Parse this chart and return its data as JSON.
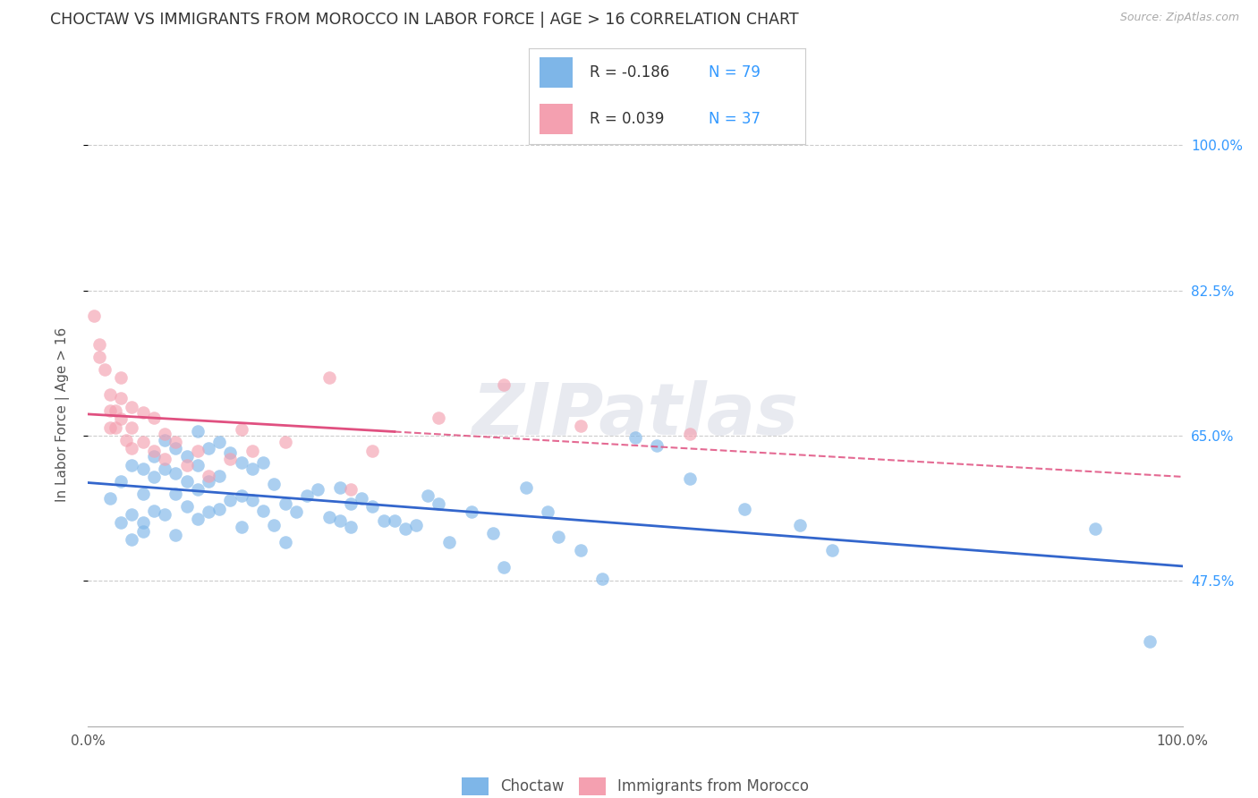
{
  "title": "CHOCTAW VS IMMIGRANTS FROM MOROCCO IN LABOR FORCE | AGE > 16 CORRELATION CHART",
  "source_text": "Source: ZipAtlas.com",
  "ylabel": "In Labor Force | Age > 16",
  "xlim": [
    0.0,
    1.0
  ],
  "ylim": [
    0.3,
    1.05
  ],
  "yticks": [
    0.475,
    0.65,
    0.825,
    1.0
  ],
  "ytick_labels": [
    "47.5%",
    "65.0%",
    "82.5%",
    "100.0%"
  ],
  "background_color": "#ffffff",
  "grid_color": "#cccccc",
  "blue_color": "#7EB6E8",
  "pink_color": "#F4A0B0",
  "blue_line_color": "#3366CC",
  "pink_line_color": "#E05080",
  "title_color": "#333333",
  "axis_label_color": "#555555",
  "blue_R": -0.186,
  "blue_N": 79,
  "pink_R": 0.039,
  "pink_N": 37,
  "blue_x": [
    0.02,
    0.03,
    0.03,
    0.04,
    0.04,
    0.04,
    0.05,
    0.05,
    0.05,
    0.05,
    0.06,
    0.06,
    0.06,
    0.07,
    0.07,
    0.07,
    0.08,
    0.08,
    0.08,
    0.08,
    0.09,
    0.09,
    0.09,
    0.1,
    0.1,
    0.1,
    0.1,
    0.11,
    0.11,
    0.11,
    0.12,
    0.12,
    0.12,
    0.13,
    0.13,
    0.14,
    0.14,
    0.14,
    0.15,
    0.15,
    0.16,
    0.16,
    0.17,
    0.17,
    0.18,
    0.18,
    0.19,
    0.2,
    0.21,
    0.22,
    0.23,
    0.23,
    0.24,
    0.24,
    0.25,
    0.26,
    0.27,
    0.28,
    0.29,
    0.3,
    0.31,
    0.32,
    0.33,
    0.35,
    0.37,
    0.38,
    0.4,
    0.42,
    0.43,
    0.45,
    0.47,
    0.5,
    0.52,
    0.55,
    0.6,
    0.65,
    0.68,
    0.92,
    0.97
  ],
  "blue_y": [
    0.575,
    0.595,
    0.545,
    0.615,
    0.555,
    0.525,
    0.61,
    0.58,
    0.545,
    0.535,
    0.625,
    0.6,
    0.56,
    0.645,
    0.61,
    0.555,
    0.635,
    0.605,
    0.58,
    0.53,
    0.625,
    0.595,
    0.565,
    0.655,
    0.615,
    0.585,
    0.55,
    0.635,
    0.595,
    0.558,
    0.642,
    0.602,
    0.562,
    0.63,
    0.572,
    0.618,
    0.578,
    0.54,
    0.61,
    0.572,
    0.618,
    0.56,
    0.592,
    0.542,
    0.568,
    0.522,
    0.558,
    0.578,
    0.585,
    0.552,
    0.588,
    0.548,
    0.568,
    0.54,
    0.575,
    0.565,
    0.548,
    0.548,
    0.538,
    0.542,
    0.578,
    0.568,
    0.522,
    0.558,
    0.532,
    0.492,
    0.588,
    0.558,
    0.528,
    0.512,
    0.478,
    0.648,
    0.638,
    0.598,
    0.562,
    0.542,
    0.512,
    0.538,
    0.402
  ],
  "pink_x": [
    0.005,
    0.01,
    0.01,
    0.015,
    0.02,
    0.02,
    0.02,
    0.025,
    0.025,
    0.03,
    0.03,
    0.03,
    0.035,
    0.04,
    0.04,
    0.04,
    0.05,
    0.05,
    0.06,
    0.06,
    0.07,
    0.07,
    0.08,
    0.09,
    0.1,
    0.11,
    0.13,
    0.14,
    0.15,
    0.18,
    0.22,
    0.24,
    0.26,
    0.32,
    0.38,
    0.45,
    0.55
  ],
  "pink_y": [
    0.795,
    0.745,
    0.76,
    0.73,
    0.7,
    0.68,
    0.66,
    0.68,
    0.66,
    0.72,
    0.695,
    0.67,
    0.645,
    0.685,
    0.66,
    0.635,
    0.678,
    0.642,
    0.672,
    0.632,
    0.652,
    0.622,
    0.642,
    0.615,
    0.632,
    0.602,
    0.622,
    0.658,
    0.632,
    0.642,
    0.72,
    0.585,
    0.632,
    0.672,
    0.712,
    0.662,
    0.652
  ],
  "blue_scatter_size": 110,
  "pink_scatter_size": 110,
  "scatter_alpha": 0.65,
  "watermark": "ZIPatlas",
  "watermark_color": "#E8EAF0",
  "watermark_fontsize": 58
}
